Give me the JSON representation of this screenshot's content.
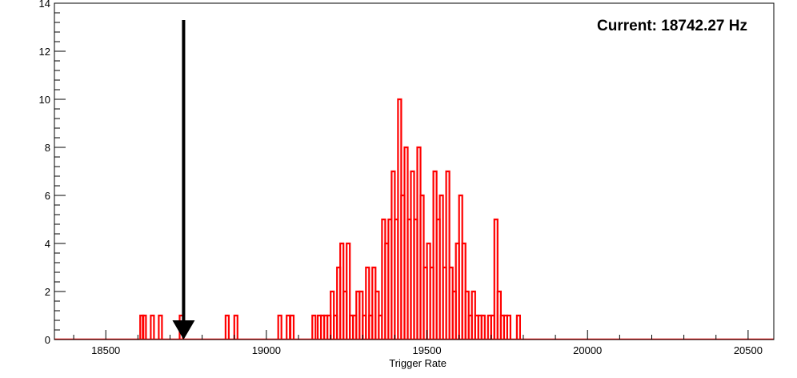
{
  "chart_data": {
    "type": "histogram",
    "xlabel": "Trigger Rate",
    "ylabel": "",
    "xlim": [
      18340,
      20580
    ],
    "ylim": [
      0,
      14
    ],
    "x_ticks": [
      18500,
      19000,
      19500,
      20000,
      20500
    ],
    "y_ticks": [
      0,
      2,
      4,
      6,
      8,
      10,
      12,
      14
    ],
    "grid": false,
    "annotation": "Current: 18742.27 Hz",
    "marker": {
      "type": "arrow-down",
      "x": 18742.27,
      "y_top": 13.3,
      "y_bottom": 0
    },
    "colors": {
      "histogram": "#ff0000",
      "marker": "#000000"
    },
    "bins": [
      {
        "x": 18612,
        "y": 1
      },
      {
        "x": 18620,
        "y": 1
      },
      {
        "x": 18645,
        "y": 1
      },
      {
        "x": 18670,
        "y": 1
      },
      {
        "x": 18735,
        "y": 1
      },
      {
        "x": 18878,
        "y": 1
      },
      {
        "x": 18905,
        "y": 1
      },
      {
        "x": 19042,
        "y": 1
      },
      {
        "x": 19068,
        "y": 1
      },
      {
        "x": 19080,
        "y": 1
      },
      {
        "x": 19148,
        "y": 1
      },
      {
        "x": 19165,
        "y": 1
      },
      {
        "x": 19175,
        "y": 1
      },
      {
        "x": 19185,
        "y": 1
      },
      {
        "x": 19195,
        "y": 1
      },
      {
        "x": 19205,
        "y": 2
      },
      {
        "x": 19215,
        "y": 1
      },
      {
        "x": 19225,
        "y": 3
      },
      {
        "x": 19235,
        "y": 4
      },
      {
        "x": 19245,
        "y": 2
      },
      {
        "x": 19255,
        "y": 4
      },
      {
        "x": 19265,
        "y": 1
      },
      {
        "x": 19275,
        "y": 1
      },
      {
        "x": 19285,
        "y": 2
      },
      {
        "x": 19295,
        "y": 2
      },
      {
        "x": 19305,
        "y": 1
      },
      {
        "x": 19315,
        "y": 3
      },
      {
        "x": 19325,
        "y": 1
      },
      {
        "x": 19335,
        "y": 3
      },
      {
        "x": 19345,
        "y": 2
      },
      {
        "x": 19355,
        "y": 1
      },
      {
        "x": 19365,
        "y": 5
      },
      {
        "x": 19375,
        "y": 4
      },
      {
        "x": 19385,
        "y": 5
      },
      {
        "x": 19395,
        "y": 7
      },
      {
        "x": 19405,
        "y": 5
      },
      {
        "x": 19415,
        "y": 10
      },
      {
        "x": 19425,
        "y": 6
      },
      {
        "x": 19435,
        "y": 8
      },
      {
        "x": 19445,
        "y": 5
      },
      {
        "x": 19455,
        "y": 7
      },
      {
        "x": 19465,
        "y": 5
      },
      {
        "x": 19475,
        "y": 8
      },
      {
        "x": 19485,
        "y": 6
      },
      {
        "x": 19495,
        "y": 3
      },
      {
        "x": 19505,
        "y": 4
      },
      {
        "x": 19515,
        "y": 3
      },
      {
        "x": 19525,
        "y": 7
      },
      {
        "x": 19535,
        "y": 5
      },
      {
        "x": 19545,
        "y": 6
      },
      {
        "x": 19555,
        "y": 3
      },
      {
        "x": 19565,
        "y": 7
      },
      {
        "x": 19575,
        "y": 3
      },
      {
        "x": 19585,
        "y": 2
      },
      {
        "x": 19595,
        "y": 4
      },
      {
        "x": 19605,
        "y": 6
      },
      {
        "x": 19615,
        "y": 4
      },
      {
        "x": 19625,
        "y": 2
      },
      {
        "x": 19635,
        "y": 1
      },
      {
        "x": 19645,
        "y": 2
      },
      {
        "x": 19655,
        "y": 1
      },
      {
        "x": 19665,
        "y": 1
      },
      {
        "x": 19675,
        "y": 1
      },
      {
        "x": 19695,
        "y": 1
      },
      {
        "x": 19705,
        "y": 1
      },
      {
        "x": 19715,
        "y": 5
      },
      {
        "x": 19725,
        "y": 2
      },
      {
        "x": 19735,
        "y": 1
      },
      {
        "x": 19745,
        "y": 1
      },
      {
        "x": 19755,
        "y": 1
      },
      {
        "x": 19785,
        "y": 1
      }
    ]
  }
}
